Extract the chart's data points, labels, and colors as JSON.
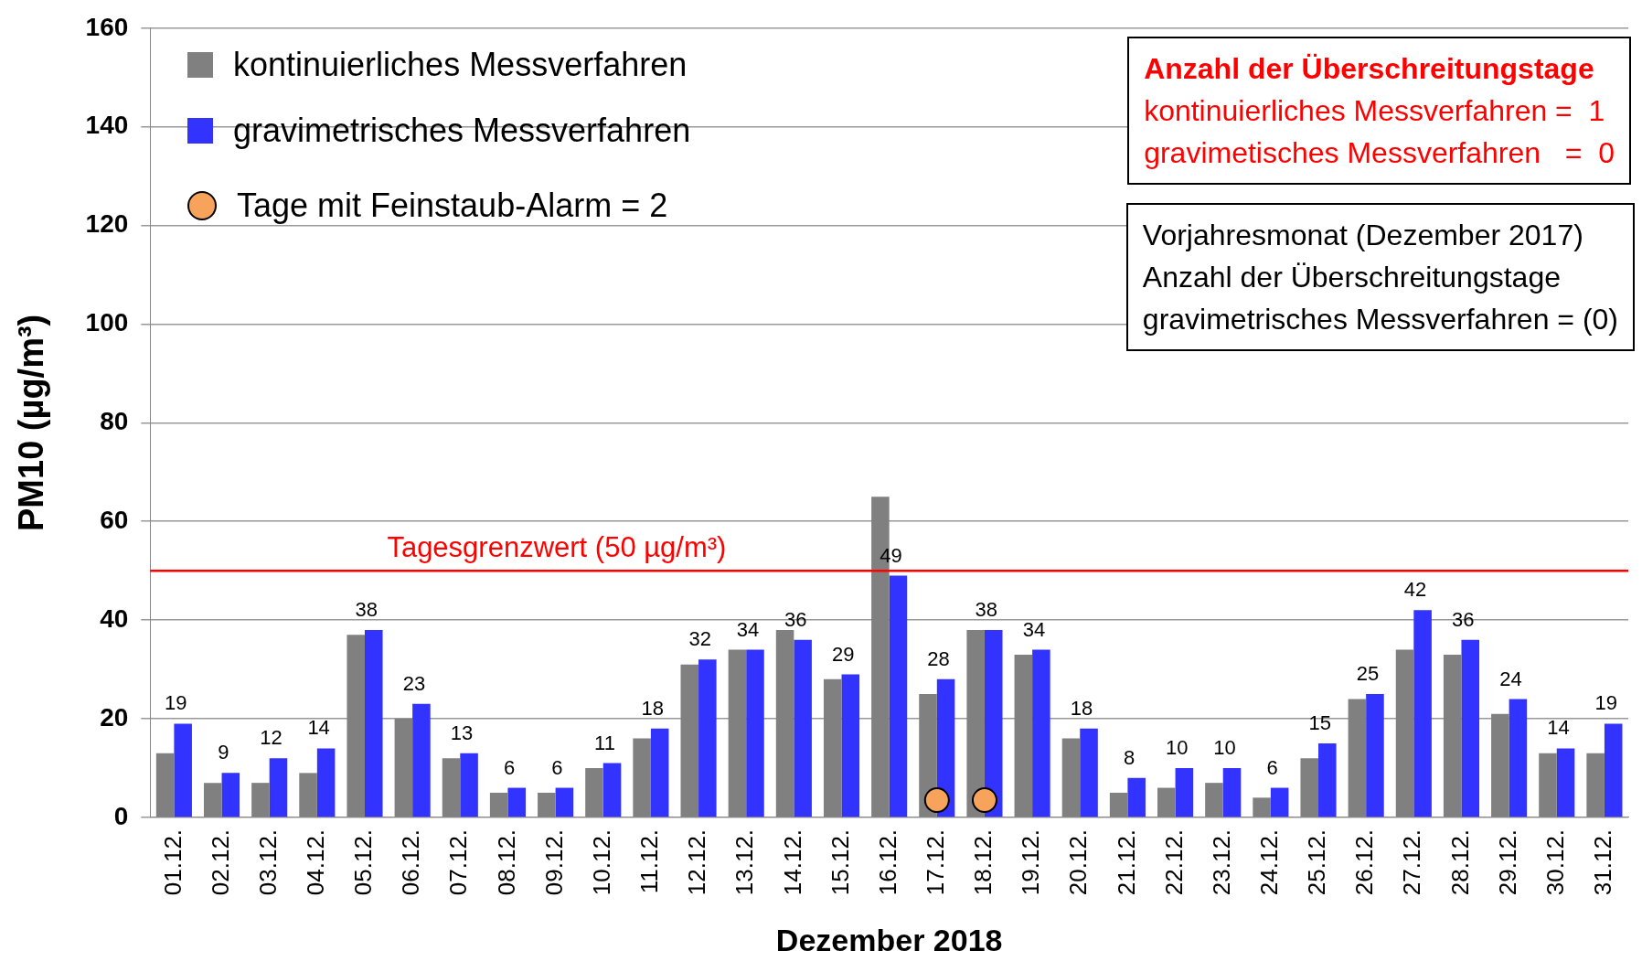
{
  "chart_data": {
    "type": "bar",
    "xlabel": "Dezember 2018",
    "ylabel": "PM10 (µg/m³)",
    "categories": [
      "01.12.",
      "02.12.",
      "03.12.",
      "04.12.",
      "05.12.",
      "06.12.",
      "07.12.",
      "08.12.",
      "09.12.",
      "10.12.",
      "11.12.",
      "12.12.",
      "13.12.",
      "14.12.",
      "15.12.",
      "16.12.",
      "17.12.",
      "18.12.",
      "19.12.",
      "20.12.",
      "21.12.",
      "22.12.",
      "23.12.",
      "24.12.",
      "25.12.",
      "26.12.",
      "27.12.",
      "28.12.",
      "29.12.",
      "30.12.",
      "31.12."
    ],
    "series": [
      {
        "name": "kontinuierliches Messverfahren",
        "color": "#808080",
        "values": [
          13,
          7,
          7,
          9,
          37,
          20,
          12,
          5,
          5,
          10,
          16,
          31,
          34,
          38,
          28,
          65,
          25,
          38,
          33,
          16,
          5,
          6,
          7,
          4,
          12,
          24,
          34,
          33,
          21,
          13,
          13
        ]
      },
      {
        "name": "gravimetrisches Messverfahren",
        "color": "#3333ff",
        "values": [
          19,
          9,
          12,
          14,
          38,
          23,
          13,
          6,
          6,
          11,
          18,
          32,
          34,
          36,
          29,
          49,
          28,
          38,
          34,
          18,
          8,
          10,
          10,
          6,
          15,
          25,
          42,
          36,
          24,
          14,
          19
        ],
        "value_labels": [
          "19",
          "9",
          "12",
          "14",
          "38",
          "23",
          "13",
          "6",
          "6",
          "11",
          "18",
          "32",
          "34",
          "36",
          "29",
          "49",
          "28",
          "38",
          "34",
          "18",
          "8",
          "10",
          "10",
          "6",
          "15",
          "25",
          "42",
          "36",
          "24",
          "14",
          "19"
        ]
      },
      {
        "name": "Tage mit Feinstaub-Alarm = 2",
        "type": "scatter",
        "color": "#f7a35c",
        "x": [
          "17.12.",
          "18.12."
        ],
        "values": [
          3.5,
          3.5
        ]
      }
    ],
    "ylim": [
      0,
      160
    ],
    "yticks": [
      0,
      20,
      40,
      60,
      80,
      100,
      120,
      140,
      160
    ],
    "grid": "y",
    "legend": "top left",
    "marker": "circle",
    "ref_lines": [
      {
        "axis": "y",
        "value": 50,
        "label": "Tagesgrenzwert (50 µg/m³)",
        "color": "#ff0000"
      }
    ],
    "annotations": [
      "Anzahl der Überschreitungstage",
      "kontinuierliches Messverfahren =  1",
      "gravimetisches Messverfahren   =  0",
      "Vorjahresmonat (Dezember 2017)",
      "Anzahl der Überschreitungstage",
      "gravimetrisches Messverfahren = (0)"
    ]
  }
}
